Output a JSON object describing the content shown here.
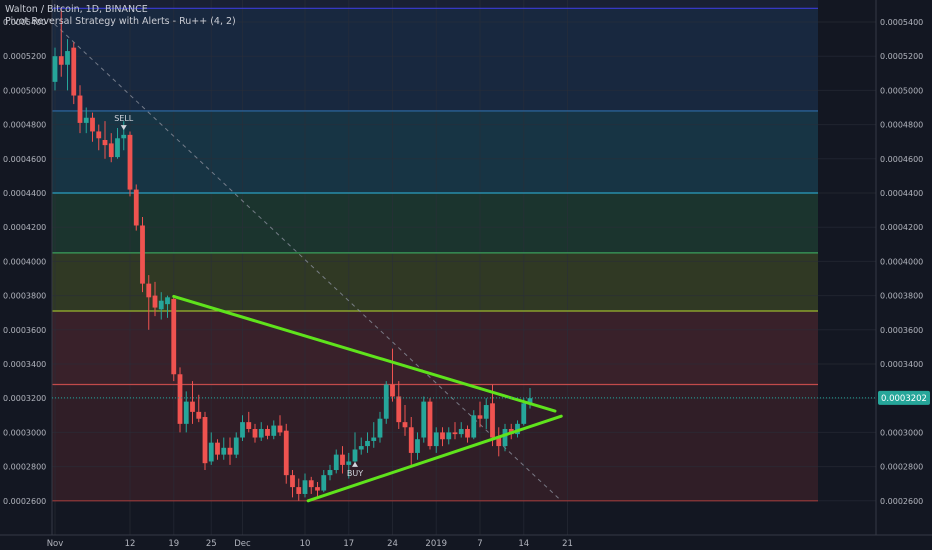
{
  "header": {
    "symbol_line": "Walton / Bitcoin, 1D, BINANCE",
    "indicator_line": "Pivot Reversal Strategy with Alerts - Ru++ (4, 2)"
  },
  "chart_data": {
    "type": "candlestick",
    "y_ticks": [
      "0.0005400",
      "0.0005200",
      "0.0005000",
      "0.0004800",
      "0.0004600",
      "0.0004400",
      "0.0004200",
      "0.0004000",
      "0.0003800",
      "0.0003600",
      "0.0003400",
      "0.0003200",
      "0.0003000",
      "0.0002800",
      "0.0002600"
    ],
    "ylim": [
      0.000252,
      0.000551
    ],
    "x_labels": [
      "Nov",
      "12",
      "19",
      "25",
      "Dec",
      "10",
      "17",
      "24",
      "2019",
      "7",
      "14",
      "21"
    ],
    "x_label_day": [
      0,
      12,
      19,
      25,
      30,
      40,
      47,
      54,
      61,
      68,
      75,
      82
    ],
    "price_label": "0.0003202",
    "last_price": 0.0003202,
    "fib_levels": [
      {
        "price": 0.000548,
        "color": "#3b3bd6"
      },
      {
        "price": 0.000488,
        "color": "#2e6ba8"
      },
      {
        "price": 0.00044,
        "color": "#2b9ec0"
      },
      {
        "price": 0.000405,
        "color": "#3aa05c"
      },
      {
        "price": 0.000371,
        "color": "#9ab82e"
      },
      {
        "price": 0.000328,
        "color": "#c24a4a"
      },
      {
        "price": 0.00026,
        "color": "#9a3a3a"
      }
    ],
    "trend_lines": [
      {
        "from": [
          19,
          0.0003795
        ],
        "to": [
          80,
          0.0003125
        ],
        "color": "#5fe31c"
      },
      {
        "from": [
          40.5,
          0.00026
        ],
        "to": [
          81,
          0.0003095
        ],
        "color": "#5fe31c"
      }
    ],
    "dashed_line": {
      "from": [
        -1,
        0.000542
      ],
      "to": [
        81,
        0.00026
      ]
    },
    "signals": [
      {
        "text": "SELL",
        "day": 11,
        "price": 0.000475,
        "side": "above"
      },
      {
        "text": "BUY",
        "day": 48,
        "price": 0.0002845,
        "side": "below"
      }
    ],
    "candles": [
      {
        "d": 0,
        "o": 0.000505,
        "h": 0.000525,
        "l": 0.0005,
        "c": 0.00052
      },
      {
        "d": 1,
        "o": 0.00052,
        "h": 0.000548,
        "l": 0.000508,
        "c": 0.000515
      },
      {
        "d": 2,
        "o": 0.000515,
        "h": 0.00053,
        "l": 0.0005,
        "c": 0.000523
      },
      {
        "d": 3,
        "o": 0.000525,
        "h": 0.000528,
        "l": 0.000492,
        "c": 0.000497
      },
      {
        "d": 4,
        "o": 0.000497,
        "h": 0.000503,
        "l": 0.000475,
        "c": 0.000481
      },
      {
        "d": 5,
        "o": 0.000481,
        "h": 0.00049,
        "l": 0.000475,
        "c": 0.000484
      },
      {
        "d": 6,
        "o": 0.000484,
        "h": 0.000487,
        "l": 0.00047,
        "c": 0.000476
      },
      {
        "d": 7,
        "o": 0.000476,
        "h": 0.00048,
        "l": 0.000465,
        "c": 0.000472
      },
      {
        "d": 8,
        "o": 0.000471,
        "h": 0.000482,
        "l": 0.00046,
        "c": 0.000468
      },
      {
        "d": 9,
        "o": 0.000469,
        "h": 0.000475,
        "l": 0.000458,
        "c": 0.000461
      },
      {
        "d": 10,
        "o": 0.000461,
        "h": 0.000478,
        "l": 0.00046,
        "c": 0.000472
      },
      {
        "d": 11,
        "o": 0.000472,
        "h": 0.000482,
        "l": 0.000465,
        "c": 0.000474
      },
      {
        "d": 12,
        "o": 0.000474,
        "h": 0.000476,
        "l": 0.000438,
        "c": 0.000442
      },
      {
        "d": 13,
        "o": 0.000442,
        "h": 0.000445,
        "l": 0.000418,
        "c": 0.000421
      },
      {
        "d": 14,
        "o": 0.000421,
        "h": 0.000426,
        "l": 0.000382,
        "c": 0.000387
      },
      {
        "d": 15,
        "o": 0.000387,
        "h": 0.000392,
        "l": 0.00036,
        "c": 0.000379
      },
      {
        "d": 16,
        "o": 0.00038,
        "h": 0.000388,
        "l": 0.000368,
        "c": 0.000373
      },
      {
        "d": 17,
        "o": 0.000372,
        "h": 0.000382,
        "l": 0.000366,
        "c": 0.000377
      },
      {
        "d": 18,
        "o": 0.000375,
        "h": 0.00038,
        "l": 0.000367,
        "c": 0.000379
      },
      {
        "d": 19,
        "o": 0.000378,
        "h": 0.00038,
        "l": 0.00033,
        "c": 0.000334
      },
      {
        "d": 20,
        "o": 0.000334,
        "h": 0.000338,
        "l": 0.0003,
        "c": 0.000305
      },
      {
        "d": 21,
        "o": 0.000305,
        "h": 0.000324,
        "l": 0.0003,
        "c": 0.000318
      },
      {
        "d": 22,
        "o": 0.000318,
        "h": 0.00033,
        "l": 0.000305,
        "c": 0.000312
      },
      {
        "d": 23,
        "o": 0.000312,
        "h": 0.000322,
        "l": 0.000306,
        "c": 0.000308
      },
      {
        "d": 24,
        "o": 0.000309,
        "h": 0.000312,
        "l": 0.000278,
        "c": 0.000282
      },
      {
        "d": 25,
        "o": 0.000283,
        "h": 0.0003,
        "l": 0.000281,
        "c": 0.000294
      },
      {
        "d": 26,
        "o": 0.000294,
        "h": 0.000296,
        "l": 0.000284,
        "c": 0.000287
      },
      {
        "d": 27,
        "o": 0.000287,
        "h": 0.000297,
        "l": 0.000284,
        "c": 0.000291
      },
      {
        "d": 28,
        "o": 0.000291,
        "h": 0.000297,
        "l": 0.000281,
        "c": 0.000287
      },
      {
        "d": 29,
        "o": 0.000287,
        "h": 0.0003,
        "l": 0.000285,
        "c": 0.000297
      },
      {
        "d": 30,
        "o": 0.000297,
        "h": 0.00031,
        "l": 0.000295,
        "c": 0.000306
      },
      {
        "d": 31,
        "o": 0.000306,
        "h": 0.000312,
        "l": 0.0003,
        "c": 0.000302
      },
      {
        "d": 32,
        "o": 0.000302,
        "h": 0.000305,
        "l": 0.000294,
        "c": 0.000297
      },
      {
        "d": 33,
        "o": 0.000297,
        "h": 0.000306,
        "l": 0.000295,
        "c": 0.000302
      },
      {
        "d": 34,
        "o": 0.000302,
        "h": 0.000304,
        "l": 0.000296,
        "c": 0.000298
      },
      {
        "d": 35,
        "o": 0.000298,
        "h": 0.000307,
        "l": 0.000296,
        "c": 0.000304
      },
      {
        "d": 36,
        "o": 0.000304,
        "h": 0.00031,
        "l": 0.000298,
        "c": 0.0003
      },
      {
        "d": 37,
        "o": 0.000301,
        "h": 0.000305,
        "l": 0.00027,
        "c": 0.000275
      },
      {
        "d": 38,
        "o": 0.000275,
        "h": 0.000278,
        "l": 0.000262,
        "c": 0.000268
      },
      {
        "d": 39,
        "o": 0.000268,
        "h": 0.000273,
        "l": 0.00026,
        "c": 0.000264
      },
      {
        "d": 40,
        "o": 0.000264,
        "h": 0.000276,
        "l": 0.000262,
        "c": 0.000272
      },
      {
        "d": 41,
        "o": 0.000272,
        "h": 0.000274,
        "l": 0.000264,
        "c": 0.000268
      },
      {
        "d": 42,
        "o": 0.000268,
        "h": 0.000271,
        "l": 0.000262,
        "c": 0.000266
      },
      {
        "d": 43,
        "o": 0.000266,
        "h": 0.000278,
        "l": 0.000265,
        "c": 0.000275
      },
      {
        "d": 44,
        "o": 0.000275,
        "h": 0.000281,
        "l": 0.000272,
        "c": 0.000278
      },
      {
        "d": 45,
        "o": 0.000278,
        "h": 0.00029,
        "l": 0.000276,
        "c": 0.000287
      },
      {
        "d": 46,
        "o": 0.000287,
        "h": 0.000292,
        "l": 0.000276,
        "c": 0.000281
      },
      {
        "d": 47,
        "o": 0.000281,
        "h": 0.000288,
        "l": 0.000273,
        "c": 0.000283
      },
      {
        "d": 48,
        "o": 0.000283,
        "h": 0.0003,
        "l": 0.000281,
        "c": 0.00029
      },
      {
        "d": 49,
        "o": 0.00029,
        "h": 0.000297,
        "l": 0.000287,
        "c": 0.000292
      },
      {
        "d": 50,
        "o": 0.000292,
        "h": 0.0003,
        "l": 0.000288,
        "c": 0.000295
      },
      {
        "d": 51,
        "o": 0.000295,
        "h": 0.000306,
        "l": 0.000291,
        "c": 0.000297
      },
      {
        "d": 52,
        "o": 0.000297,
        "h": 0.000312,
        "l": 0.000294,
        "c": 0.000308
      },
      {
        "d": 53,
        "o": 0.000308,
        "h": 0.00033,
        "l": 0.000305,
        "c": 0.000328
      },
      {
        "d": 54,
        "o": 0.000328,
        "h": 0.000349,
        "l": 0.000318,
        "c": 0.000321
      },
      {
        "d": 55,
        "o": 0.000321,
        "h": 0.00033,
        "l": 0.000302,
        "c": 0.000306
      },
      {
        "d": 56,
        "o": 0.000306,
        "h": 0.000316,
        "l": 0.000298,
        "c": 0.000303
      },
      {
        "d": 57,
        "o": 0.000303,
        "h": 0.000309,
        "l": 0.000281,
        "c": 0.000288
      },
      {
        "d": 58,
        "o": 0.000288,
        "h": 0.0003,
        "l": 0.000284,
        "c": 0.000296
      },
      {
        "d": 59,
        "o": 0.000297,
        "h": 0.000321,
        "l": 0.000294,
        "c": 0.000318
      },
      {
        "d": 60,
        "o": 0.000318,
        "h": 0.00032,
        "l": 0.00029,
        "c": 0.000292
      },
      {
        "d": 61,
        "o": 0.000292,
        "h": 0.000303,
        "l": 0.000288,
        "c": 0.0003
      },
      {
        "d": 62,
        "o": 0.0003,
        "h": 0.000303,
        "l": 0.000292,
        "c": 0.000296
      },
      {
        "d": 63,
        "o": 0.000296,
        "h": 0.000303,
        "l": 0.000293,
        "c": 0.0003
      },
      {
        "d": 64,
        "o": 0.0003,
        "h": 0.000306,
        "l": 0.000296,
        "c": 0.000299
      },
      {
        "d": 65,
        "o": 0.000299,
        "h": 0.000306,
        "l": 0.000297,
        "c": 0.000302
      },
      {
        "d": 66,
        "o": 0.000302,
        "h": 0.000304,
        "l": 0.000294,
        "c": 0.000297
      },
      {
        "d": 67,
        "o": 0.000297,
        "h": 0.000313,
        "l": 0.000296,
        "c": 0.00031
      },
      {
        "d": 68,
        "o": 0.00031,
        "h": 0.000318,
        "l": 0.000303,
        "c": 0.000308
      },
      {
        "d": 69,
        "o": 0.000308,
        "h": 0.00032,
        "l": 0.000302,
        "c": 0.000316
      },
      {
        "d": 70,
        "o": 0.000317,
        "h": 0.000328,
        "l": 0.000292,
        "c": 0.000297
      },
      {
        "d": 71,
        "o": 0.000297,
        "h": 0.000303,
        "l": 0.000286,
        "c": 0.000292
      },
      {
        "d": 72,
        "o": 0.000292,
        "h": 0.000305,
        "l": 0.000289,
        "c": 0.000302
      },
      {
        "d": 73,
        "o": 0.000302,
        "h": 0.000305,
        "l": 0.000296,
        "c": 0.000299
      },
      {
        "d": 74,
        "o": 0.000299,
        "h": 0.000307,
        "l": 0.000297,
        "c": 0.000305
      },
      {
        "d": 75,
        "o": 0.000305,
        "h": 0.00032,
        "l": 0.000304,
        "c": 0.000317
      },
      {
        "d": 76,
        "o": 0.000317,
        "h": 0.000326,
        "l": 0.000314,
        "c": 0.00032
      }
    ]
  }
}
